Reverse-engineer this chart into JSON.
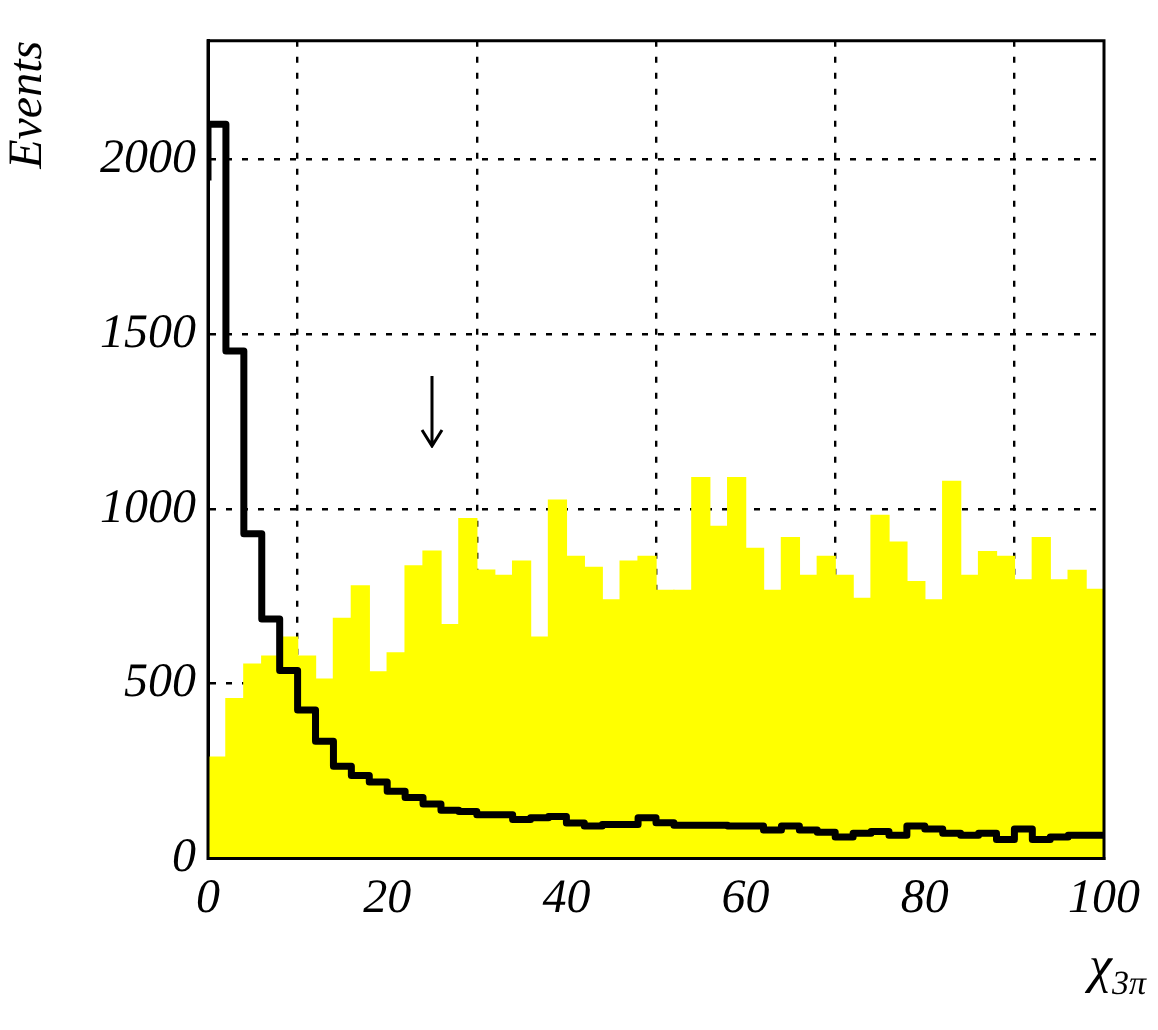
{
  "chart_data": {
    "type": "histogram",
    "xlabel": "χ$_{3π}$",
    "ylabel": "Events",
    "bins": [
      0,
      2,
      4,
      6,
      8,
      10,
      12,
      14,
      16,
      18,
      20,
      22,
      24,
      26,
      28,
      30,
      32,
      34,
      36,
      38,
      40,
      42,
      44,
      46,
      48,
      50,
      52,
      54,
      56,
      58,
      60,
      62,
      64,
      66,
      68,
      70,
      72,
      74,
      76,
      78,
      80,
      82,
      84,
      86,
      88,
      90,
      92,
      94,
      96,
      98,
      100
    ],
    "series": [
      {
        "color": "#ffff00",
        "values": [
          290,
          457,
          556,
          579,
          633,
          579,
          513,
          687,
          780,
          534,
          588,
          837,
          879,
          669,
          972,
          825,
          810,
          851,
          633,
          1025,
          864,
          833,
          740,
          851,
          864,
          767,
          767,
          1090,
          950,
          1090,
          887,
          767,
          918,
          810,
          864,
          810,
          744,
          982,
          905,
          792,
          740,
          1079,
          810,
          878,
          864,
          797,
          918,
          797,
          824,
          770
        ]
      },
      {
        "type": "step",
        "color": "#000000",
        "x": [
          0,
          2,
          4,
          6,
          8,
          10,
          12,
          14,
          16,
          18,
          20,
          22,
          24,
          26,
          28,
          30,
          32,
          34,
          36,
          38,
          40,
          42,
          44,
          46,
          48,
          50,
          52,
          54,
          56,
          58,
          60,
          62,
          64,
          66,
          68,
          70,
          72,
          74,
          76,
          78,
          80,
          82,
          84,
          86,
          88,
          90,
          92,
          94,
          96,
          98,
          100
        ],
        "values": [
          1940,
          2101,
          1452,
          929,
          685,
          538,
          425,
          335,
          264,
          237,
          219,
          192,
          174,
          156,
          138,
          134,
          125,
          125,
          111,
          116,
          120,
          101,
          93,
          97,
          97,
          116,
          102,
          95,
          95,
          95,
          93,
          93,
          81,
          93,
          81,
          75,
          61,
          72,
          77,
          66,
          93,
          84,
          72,
          66,
          72,
          54,
          84,
          54,
          61,
          66,
          66
        ]
      }
    ],
    "xlim": [
      0,
      100
    ],
    "xticks": [
      0,
      20,
      40,
      60,
      80,
      100
    ],
    "ylim": [
      0,
      2340
    ],
    "yticks": [
      0,
      500,
      1000,
      1500,
      2000
    ],
    "grid": true,
    "legend": false
  }
}
